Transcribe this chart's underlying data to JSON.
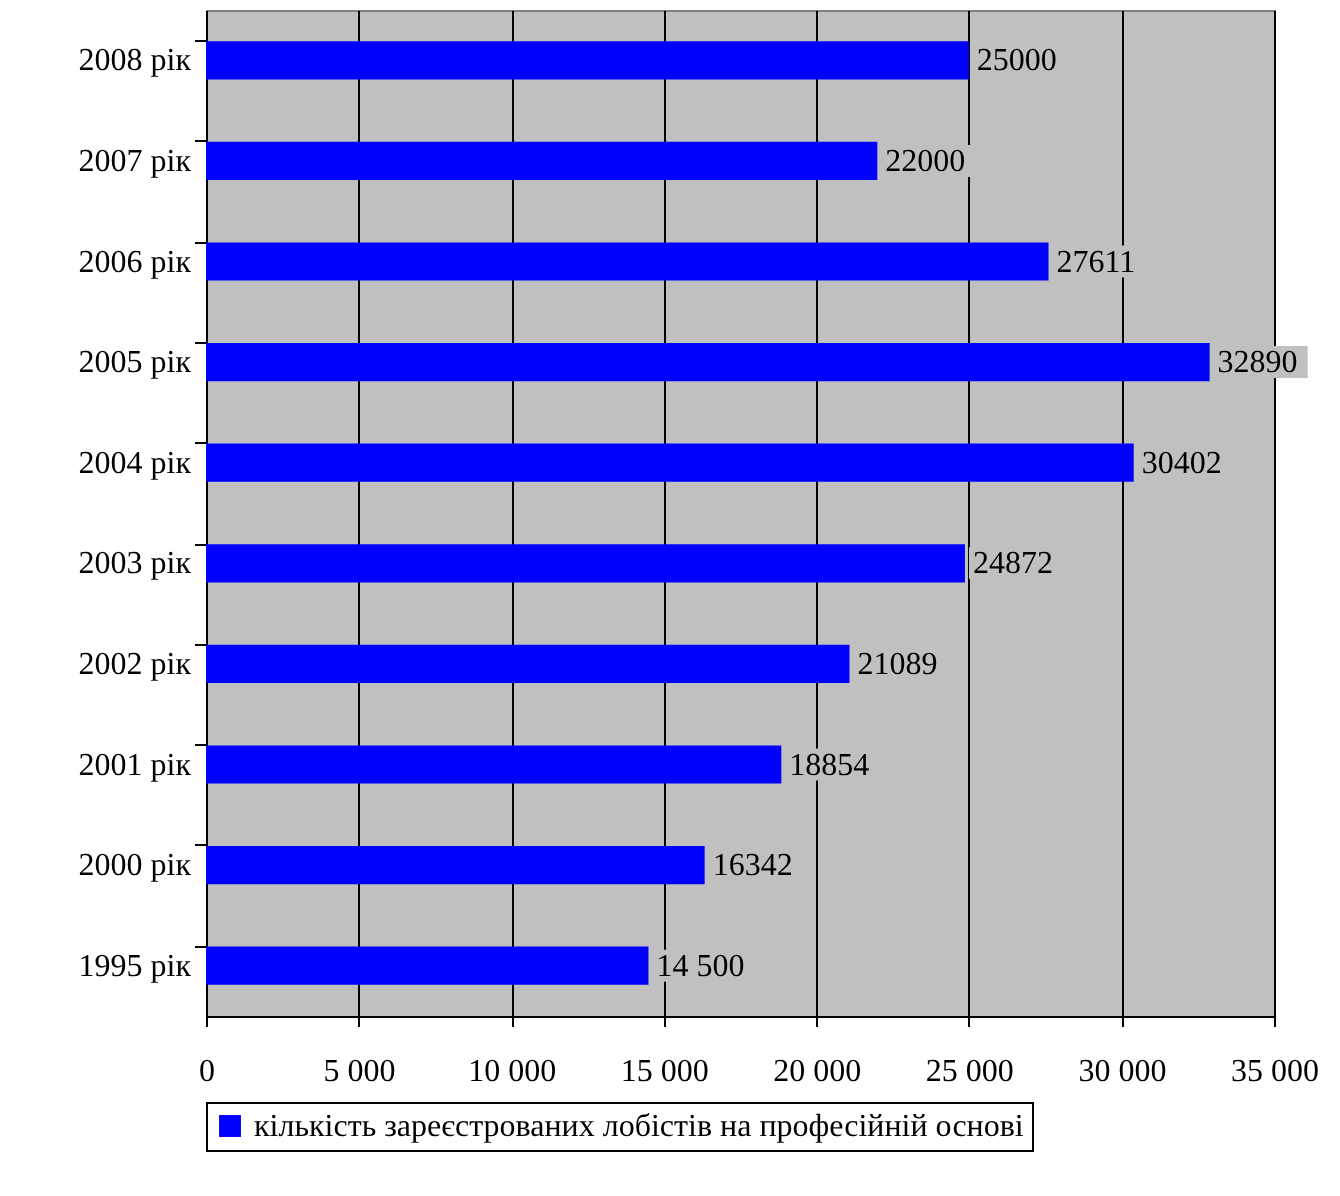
{
  "chart_data": {
    "type": "bar",
    "orientation": "horizontal",
    "categories": [
      "2008 рік",
      "2007 рік",
      "2006 рік",
      "2005 рік",
      "2004 рік",
      "2003 рік",
      "2002 рік",
      "2001 рік",
      "2000 рік",
      "1995 рік"
    ],
    "series": [
      {
        "name": "кількість зареєстрованих лобістів на професійній основі",
        "color": "#0000ff",
        "values": [
          25000,
          22000,
          27611,
          32890,
          30402,
          24872,
          21089,
          18854,
          16342,
          14500
        ],
        "value_labels": [
          "25000",
          "22000",
          "27611",
          "32890",
          "30402",
          "24872",
          "21089",
          "18854",
          "16342",
          "14 500"
        ]
      }
    ],
    "xlim": [
      0,
      35000
    ],
    "xticks": [
      0,
      {
        "value": 5000,
        "label": "5 000"
      },
      {
        "value": 10000,
        "label": "10 000"
      },
      {
        "value": 15000,
        "label": "15 000"
      },
      {
        "value": 20000,
        "label": "20 000"
      },
      {
        "value": 25000,
        "label": "25 000"
      },
      {
        "value": 30000,
        "label": "30 000"
      },
      {
        "value": 35000,
        "label": "35 000"
      }
    ],
    "grid": "x",
    "legend": "bottom"
  }
}
